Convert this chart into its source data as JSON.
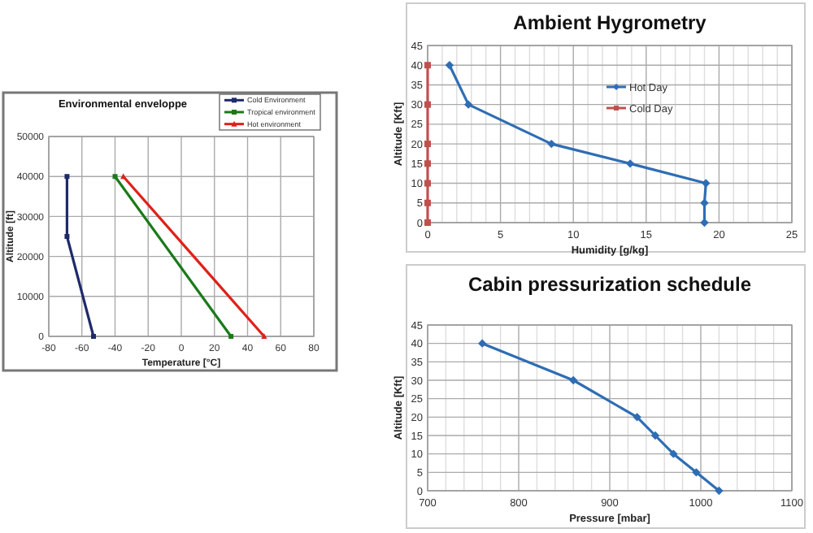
{
  "chart_data": [
    {
      "type": "line",
      "title": "Environmental enveloppe",
      "xlabel": "Temperature [°C]",
      "ylabel": "Altitude [ft]",
      "xlim": [
        -80,
        80
      ],
      "xticks": [
        -80,
        -60,
        -40,
        -20,
        0,
        20,
        40,
        60,
        80
      ],
      "ylim": [
        0,
        50000
      ],
      "yticks": [
        0,
        10000,
        20000,
        30000,
        40000,
        50000
      ],
      "grid": true,
      "legend": "top right",
      "marker": "square",
      "series": [
        {
          "name": "Cold Environment",
          "color": "#1f2a6b",
          "x": [
            -53,
            -69,
            -69
          ],
          "values": [
            0,
            25000,
            40000
          ]
        },
        {
          "name": "Tropical environment",
          "color": "#1a7a1a",
          "x": [
            30,
            -40
          ],
          "values": [
            0,
            40000
          ]
        },
        {
          "name": "Hot environment",
          "color": "#e0201a",
          "x": [
            50,
            -35
          ],
          "values": [
            0,
            40000
          ],
          "marker": "triangle"
        }
      ]
    },
    {
      "type": "line",
      "title": "Ambient Hygrometry",
      "xlabel": "Humidity [g/kg]",
      "ylabel": "Altitude [Kft]",
      "xlim": [
        0,
        25
      ],
      "xticks": [
        0,
        {
          "value": 1,
          "label": null
        },
        {
          "value": 2,
          "label": null
        },
        {
          "value": 3,
          "label": null
        },
        {
          "value": 4,
          "label": null
        },
        5,
        {
          "value": 6,
          "label": null
        },
        {
          "value": 7,
          "label": null
        },
        {
          "value": 8,
          "label": null
        },
        {
          "value": 9,
          "label": null
        },
        10,
        {
          "value": 11,
          "label": null
        },
        {
          "value": 12,
          "label": null
        },
        {
          "value": 13,
          "label": null
        },
        {
          "value": 14,
          "label": null
        },
        15,
        {
          "value": 16,
          "label": null
        },
        {
          "value": 17,
          "label": null
        },
        {
          "value": 18,
          "label": null
        },
        {
          "value": 19,
          "label": null
        },
        20,
        {
          "value": 21,
          "label": null
        },
        {
          "value": 22,
          "label": null
        },
        {
          "value": 23,
          "label": null
        },
        {
          "value": 24,
          "label": null
        },
        25
      ],
      "ylim": [
        0,
        45
      ],
      "yticks": [
        0,
        5,
        10,
        15,
        20,
        25,
        30,
        35,
        40,
        45
      ],
      "grid": true,
      "legend": "right",
      "series": [
        {
          "name": "Hot Day",
          "color": "#2e6db4",
          "marker": "diamond",
          "x": [
            19,
            19,
            19.1,
            13.9,
            8.5,
            2.8,
            1.5
          ],
          "values": [
            0,
            5,
            10,
            15,
            20,
            30,
            40
          ]
        },
        {
          "name": "Cold Day",
          "color": "#c0504d",
          "marker": "square",
          "x": [
            0,
            0,
            0,
            0,
            0,
            0,
            0
          ],
          "values": [
            0,
            5,
            10,
            15,
            20,
            30,
            40
          ]
        }
      ]
    },
    {
      "type": "line",
      "title": "Cabin pressurization schedule",
      "xlabel": "Pressure [mbar]",
      "ylabel": "Altitude [Kft]",
      "xlim": [
        700,
        1100
      ],
      "xticks": [
        700,
        {
          "value": 720,
          "label": null
        },
        {
          "value": 740,
          "label": null
        },
        {
          "value": 760,
          "label": null
        },
        {
          "value": 780,
          "label": null
        },
        800,
        {
          "value": 820,
          "label": null
        },
        {
          "value": 840,
          "label": null
        },
        {
          "value": 860,
          "label": null
        },
        {
          "value": 880,
          "label": null
        },
        900,
        {
          "value": 920,
          "label": null
        },
        {
          "value": 940,
          "label": null
        },
        {
          "value": 960,
          "label": null
        },
        {
          "value": 980,
          "label": null
        },
        1000,
        {
          "value": 1020,
          "label": null
        },
        {
          "value": 1040,
          "label": null
        },
        {
          "value": 1060,
          "label": null
        },
        {
          "value": 1080,
          "label": null
        },
        1100
      ],
      "ylim": [
        0,
        45
      ],
      "yticks": [
        0,
        5,
        10,
        15,
        20,
        25,
        30,
        35,
        40,
        45
      ],
      "grid": true,
      "legend": false,
      "marker": "diamond",
      "series": [
        {
          "color": "#2e6db4",
          "x": [
            760,
            860,
            930,
            950,
            970,
            995,
            1020
          ],
          "values": [
            40,
            30,
            20,
            15,
            10,
            5,
            0
          ]
        }
      ]
    }
  ]
}
